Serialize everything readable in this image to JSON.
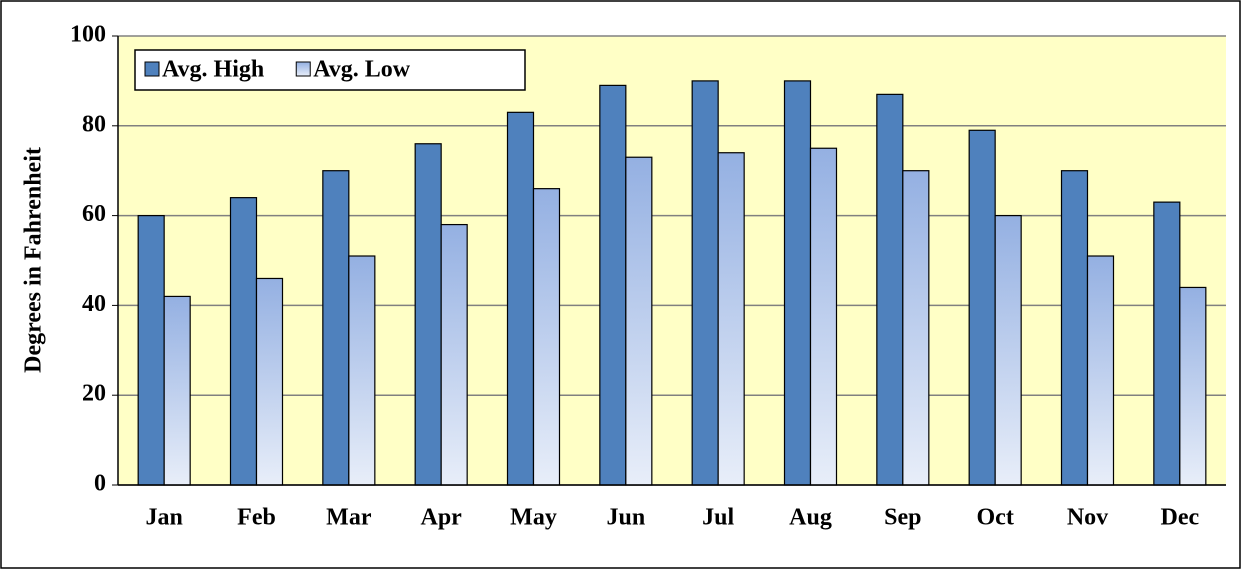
{
  "chart_data": {
    "type": "bar",
    "y_label": "Degrees in Fahrenheit",
    "categories": [
      "Jan",
      "Feb",
      "Mar",
      "Apr",
      "May",
      "Jun",
      "Jul",
      "Aug",
      "Sep",
      "Oct",
      "Nov",
      "Dec"
    ],
    "series": [
      {
        "name": "Avg. High",
        "color": "#4f81bd",
        "values": [
          60,
          64,
          70,
          76,
          83,
          89,
          90,
          90,
          87,
          79,
          70,
          63
        ]
      },
      {
        "name": "Avg. Low",
        "color": "#a6bde8",
        "values": [
          42,
          46,
          51,
          58,
          66,
          73,
          74,
          75,
          70,
          60,
          51,
          44
        ]
      }
    ],
    "ylim": [
      0,
      100
    ],
    "yticks": [
      0,
      20,
      40,
      60,
      80,
      100
    ],
    "grid": true,
    "legend": "upper left"
  }
}
